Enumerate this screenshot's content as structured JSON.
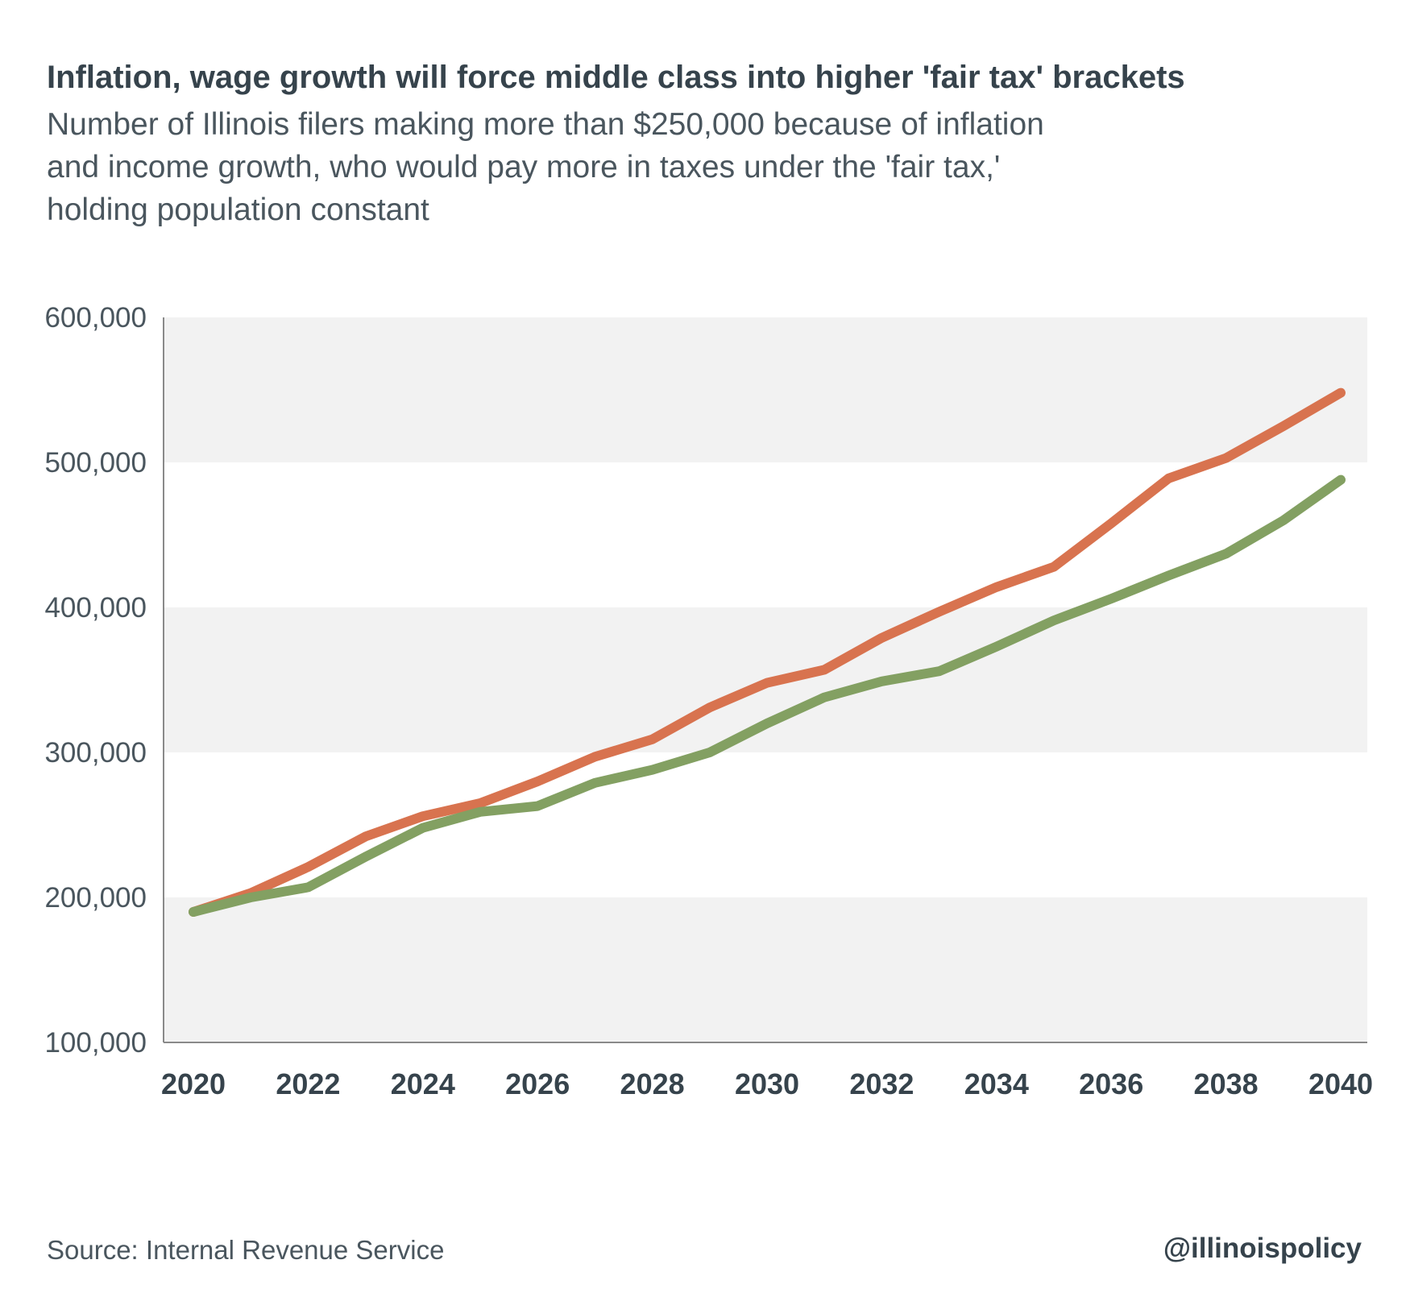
{
  "header": {
    "title": "Inflation, wage growth will force middle class into higher 'fair tax' brackets",
    "subtitle_lines": [
      "Number of Illinois filers making more than $250,000 because of inflation",
      "and income growth, who would pay more in taxes under the 'fair tax,'",
      "holding population constant"
    ]
  },
  "footer": {
    "source": "Source: Internal Revenue Service",
    "handle": "@illinoispolicy"
  },
  "chart_data": {
    "type": "line",
    "title": "Inflation, wage growth will force middle class into higher 'fair tax' brackets",
    "ylim": [
      100000,
      600000
    ],
    "yticks": [
      100000,
      200000,
      300000,
      400000,
      500000,
      600000
    ],
    "ytick_labels": [
      "100,000",
      "200,000",
      "300,000",
      "400,000",
      "500,000",
      "600,000"
    ],
    "xticks": [
      2020,
      2022,
      2024,
      2026,
      2028,
      2030,
      2032,
      2034,
      2036,
      2038,
      2040
    ],
    "xtick_labels": [
      "2020",
      "2022",
      "2024",
      "2026",
      "2028",
      "2030",
      "2032",
      "2034",
      "2036",
      "2038",
      "2040"
    ],
    "x": [
      2020,
      2021,
      2022,
      2023,
      2024,
      2025,
      2026,
      2027,
      2028,
      2029,
      2030,
      2031,
      2032,
      2033,
      2034,
      2035,
      2036,
      2037,
      2038,
      2039,
      2040
    ],
    "grid": "alternating horizontal bands",
    "series": [
      {
        "color": "#d8734f",
        "values": [
          190000,
          203000,
          221000,
          242000,
          256000,
          265000,
          280000,
          297000,
          309000,
          331000,
          348000,
          357000,
          379000,
          397000,
          414000,
          428000,
          458000,
          489000,
          503000,
          525000,
          548000
        ]
      },
      {
        "color": "#83a062",
        "values": [
          190000,
          200000,
          207000,
          228000,
          248000,
          259000,
          263000,
          279000,
          288000,
          300000,
          320000,
          338000,
          349000,
          356000,
          373000,
          391000,
          406000,
          422000,
          437000,
          460000,
          488000
        ]
      }
    ]
  }
}
